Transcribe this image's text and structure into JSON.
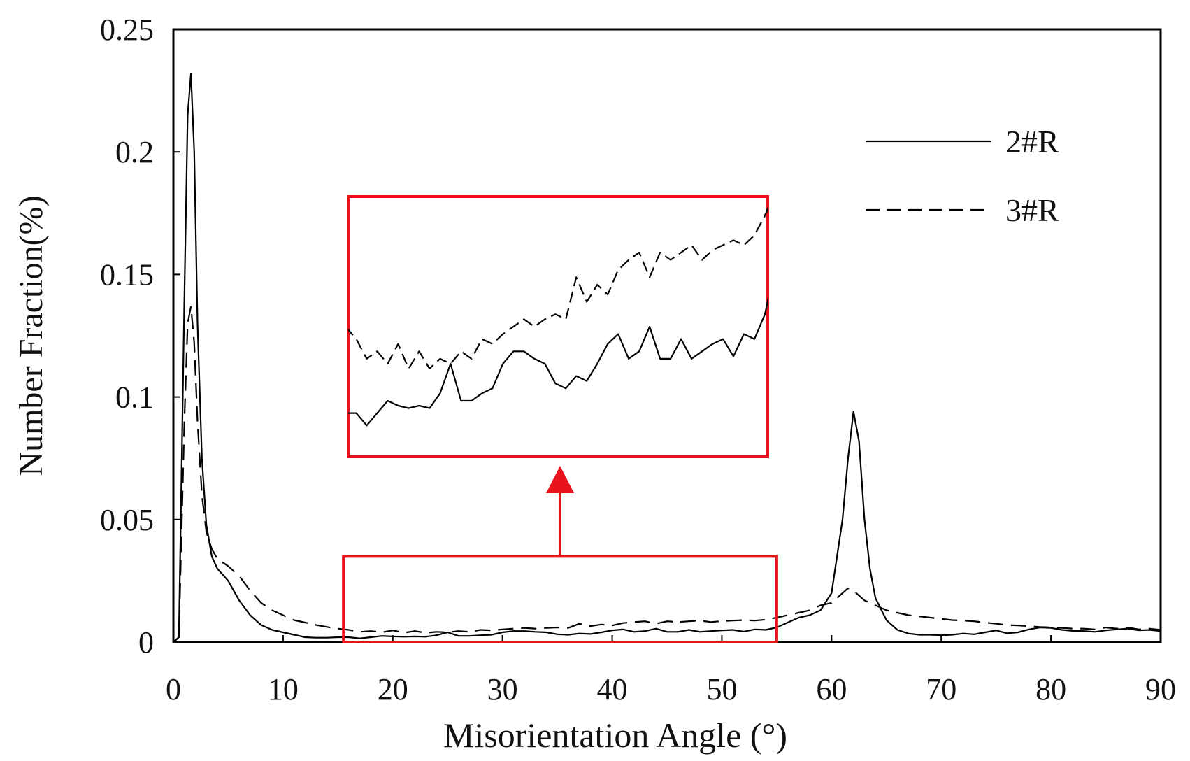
{
  "chart_data": {
    "type": "line",
    "title": "",
    "xlabel": "Misorientation Angle (°)",
    "ylabel": "Number Fraction(%)",
    "xlim": [
      0,
      90
    ],
    "ylim": [
      0,
      0.25
    ],
    "x_ticks": [
      0,
      10,
      20,
      30,
      40,
      50,
      60,
      70,
      80,
      90
    ],
    "y_ticks": [
      0,
      0.05,
      0.1,
      0.15,
      0.2,
      0.25
    ],
    "x_tick_labels": [
      "0",
      "10",
      "20",
      "30",
      "40",
      "50",
      "60",
      "70",
      "80",
      "90"
    ],
    "y_tick_labels": [
      "0",
      "0.05",
      "0.1",
      "0.15",
      "0.2",
      "0.25"
    ],
    "grid": false,
    "legend_position": "top-right",
    "series": [
      {
        "name": "2#R",
        "style": "solid",
        "x": [
          0,
          0.5,
          1.0,
          1.3,
          1.6,
          1.9,
          2.2,
          2.6,
          3.0,
          3.5,
          4.0,
          5.0,
          6.0,
          7.0,
          8.0,
          9.0,
          10,
          11,
          12,
          13,
          14,
          15,
          16,
          17,
          18,
          19,
          20,
          21,
          22,
          23,
          24,
          25,
          26,
          27,
          28,
          29,
          30,
          31,
          32,
          33,
          34,
          35,
          36,
          37,
          38,
          39,
          40,
          41,
          42,
          43,
          44,
          45,
          46,
          47,
          48,
          49,
          50,
          51,
          52,
          53,
          54,
          55,
          56,
          57,
          58,
          59,
          60,
          61,
          61.5,
          62,
          62.5,
          63,
          63.5,
          64,
          65,
          66,
          67,
          68,
          69,
          70,
          71,
          72,
          73,
          74,
          75,
          76,
          77,
          78,
          79,
          80,
          81,
          82,
          83,
          84,
          85,
          86,
          87,
          88,
          89,
          90
        ],
        "y": [
          0,
          0.002,
          0.14,
          0.215,
          0.232,
          0.2,
          0.13,
          0.075,
          0.048,
          0.035,
          0.03,
          0.025,
          0.017,
          0.011,
          0.007,
          0.005,
          0.004,
          0.003,
          0.002,
          0.0018,
          0.0018,
          0.002,
          0.002,
          0.0015,
          0.002,
          0.0025,
          0.0023,
          0.0022,
          0.0023,
          0.0022,
          0.0028,
          0.004,
          0.0025,
          0.0025,
          0.0028,
          0.003,
          0.004,
          0.0045,
          0.0045,
          0.0042,
          0.004,
          0.0032,
          0.003,
          0.0035,
          0.0033,
          0.004,
          0.0048,
          0.0052,
          0.0042,
          0.0045,
          0.0055,
          0.0042,
          0.0042,
          0.005,
          0.0042,
          0.0045,
          0.0048,
          0.005,
          0.0043,
          0.0052,
          0.005,
          0.006,
          0.008,
          0.01,
          0.011,
          0.013,
          0.02,
          0.05,
          0.075,
          0.094,
          0.082,
          0.05,
          0.03,
          0.018,
          0.009,
          0.005,
          0.0035,
          0.003,
          0.003,
          0.0028,
          0.003,
          0.0035,
          0.0032,
          0.004,
          0.0048,
          0.0036,
          0.004,
          0.0052,
          0.006,
          0.0058,
          0.005,
          0.0046,
          0.0045,
          0.0042,
          0.0048,
          0.0052,
          0.0055,
          0.0048,
          0.005,
          0.0045
        ]
      },
      {
        "name": "3#R",
        "style": "dashed",
        "x": [
          0,
          0.5,
          1.0,
          1.3,
          1.6,
          1.9,
          2.2,
          2.6,
          3.0,
          3.5,
          4.0,
          5.0,
          6.0,
          7.0,
          8.0,
          9.0,
          10,
          11,
          12,
          13,
          14,
          15,
          16,
          17,
          18,
          19,
          20,
          21,
          22,
          23,
          24,
          25,
          26,
          27,
          28,
          29,
          30,
          31,
          32,
          33,
          34,
          35,
          36,
          37,
          38,
          39,
          40,
          41,
          42,
          43,
          44,
          45,
          46,
          47,
          48,
          49,
          50,
          51,
          52,
          53,
          54,
          55,
          56,
          57,
          58,
          59,
          60,
          61,
          61.5,
          62,
          62.5,
          63,
          63.5,
          64,
          65,
          66,
          67,
          68,
          69,
          70,
          71,
          72,
          73,
          74,
          75,
          76,
          77,
          78,
          79,
          80,
          81,
          82,
          83,
          84,
          85,
          86,
          87,
          88,
          89,
          90
        ],
        "y": [
          0,
          0.002,
          0.09,
          0.13,
          0.137,
          0.122,
          0.09,
          0.06,
          0.045,
          0.038,
          0.034,
          0.031,
          0.027,
          0.021,
          0.016,
          0.013,
          0.011,
          0.009,
          0.008,
          0.007,
          0.0062,
          0.0055,
          0.005,
          0.0042,
          0.0045,
          0.004,
          0.0048,
          0.0038,
          0.0045,
          0.0038,
          0.0042,
          0.004,
          0.0045,
          0.0042,
          0.005,
          0.0048,
          0.0052,
          0.0055,
          0.0058,
          0.0055,
          0.0058,
          0.006,
          0.0058,
          0.0075,
          0.0065,
          0.0072,
          0.0068,
          0.0078,
          0.0082,
          0.0085,
          0.0075,
          0.0085,
          0.0082,
          0.0085,
          0.0088,
          0.0082,
          0.0086,
          0.0088,
          0.009,
          0.0088,
          0.0092,
          0.01,
          0.011,
          0.012,
          0.013,
          0.015,
          0.016,
          0.02,
          0.022,
          0.021,
          0.019,
          0.017,
          0.016,
          0.015,
          0.013,
          0.012,
          0.011,
          0.0105,
          0.01,
          0.0095,
          0.009,
          0.0088,
          0.0085,
          0.008,
          0.0075,
          0.007,
          0.0068,
          0.0065,
          0.0062,
          0.006,
          0.0058,
          0.0055,
          0.0055,
          0.0052,
          0.006,
          0.0055,
          0.006,
          0.0052,
          0.0055,
          0.005
        ]
      }
    ],
    "annotations": [
      {
        "type": "highlight-box",
        "x_range": [
          15.5,
          55
        ],
        "y_range": [
          0,
          0.035
        ],
        "color": "#e8141b"
      },
      {
        "type": "arrow",
        "direction": "up",
        "color": "#e8141b"
      },
      {
        "type": "zoom-inset",
        "source": "highlight-box",
        "color": "#e8141b"
      }
    ]
  }
}
